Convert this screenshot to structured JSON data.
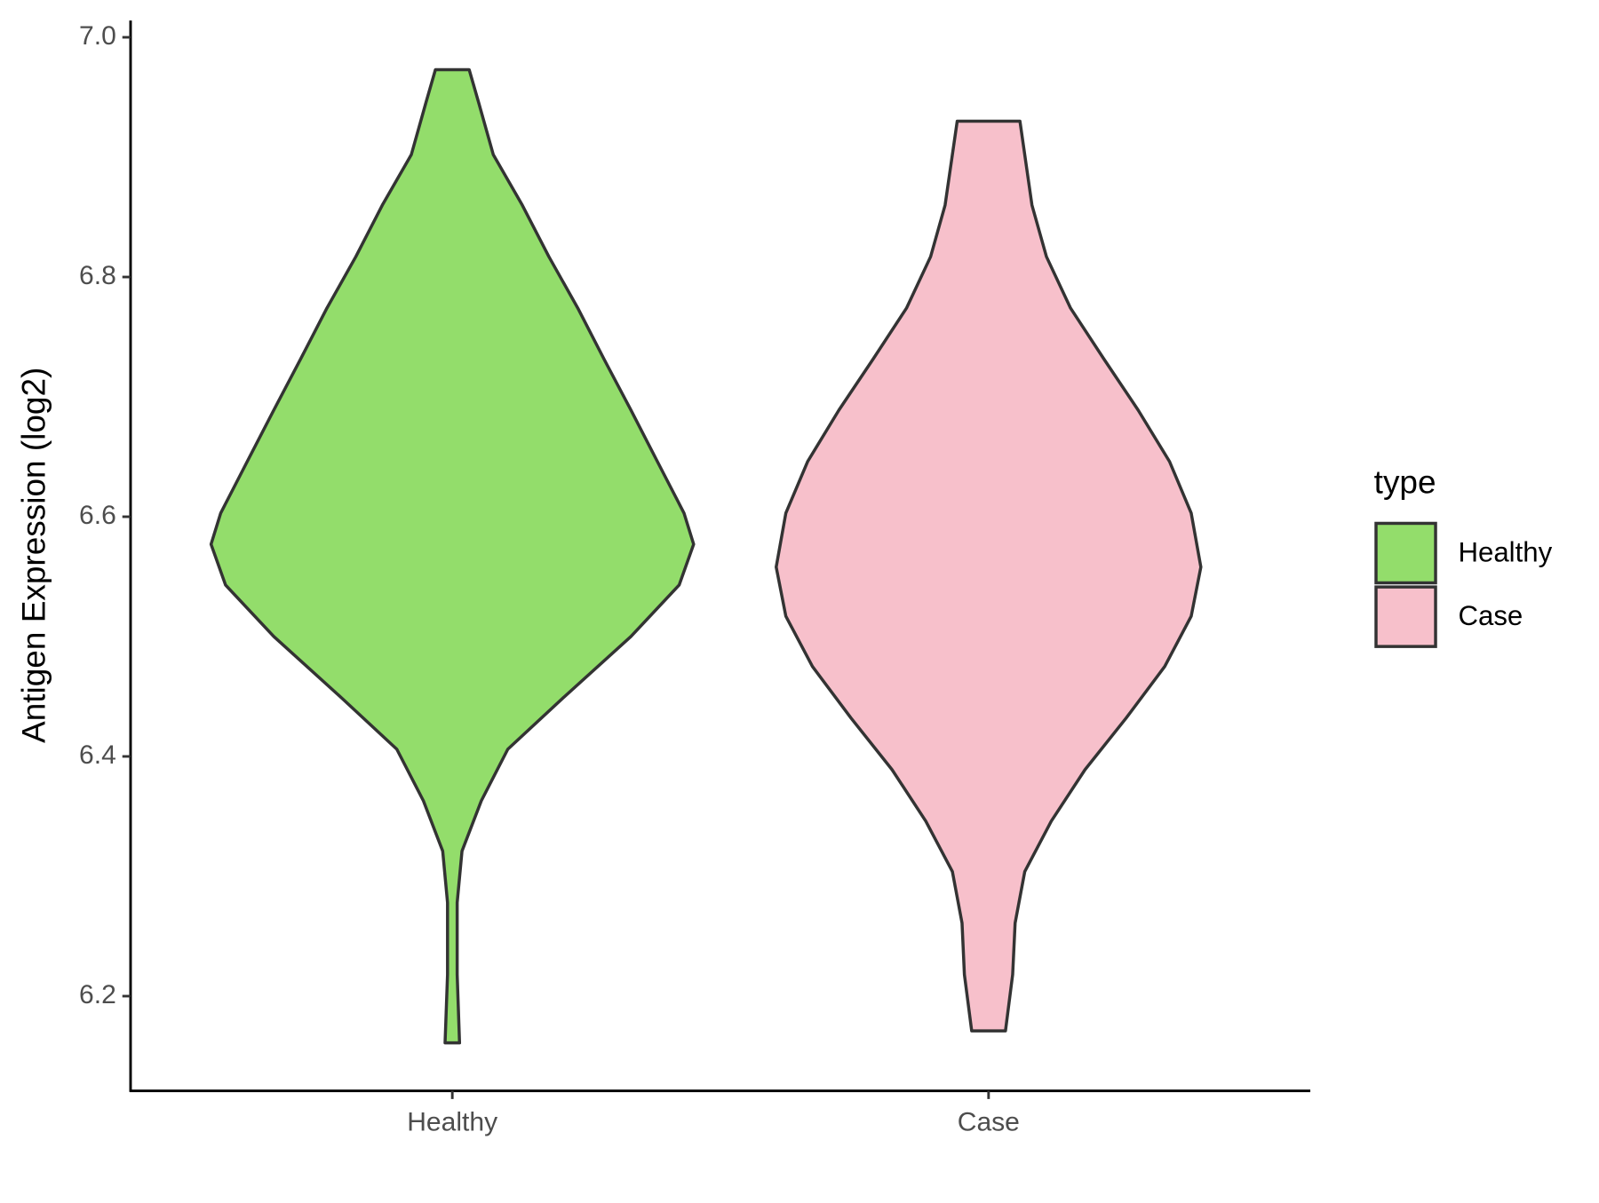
{
  "chart_data": {
    "type": "violin",
    "y_label": "Antigen Expression (log2)",
    "categories": [
      "Healthy",
      "Case"
    ],
    "legend_title": "type",
    "legend": "right",
    "ylim": [
      6.121,
      7.014
    ],
    "yticks": [
      6.2,
      6.4,
      6.6,
      6.8,
      {
        "value": 7,
        "label": "7.0"
      }
    ],
    "series": [
      {
        "name": "Healthy",
        "color": "#93dd6b",
        "y": [
          6.973,
          6.945,
          6.902,
          6.86,
          6.817,
          6.774,
          6.731,
          6.689,
          6.646,
          6.603,
          6.577,
          6.543,
          6.5,
          6.449,
          6.406,
          6.363,
          6.321,
          6.278,
          6.218,
          6.161
        ],
        "width": [
          0.07,
          0.11,
          0.17,
          0.29,
          0.4,
          0.52,
          0.63,
          0.74,
          0.85,
          0.96,
          1.0,
          0.94,
          0.74,
          0.46,
          0.23,
          0.12,
          0.04,
          0.02,
          0.02,
          0.03
        ]
      },
      {
        "name": "Case",
        "color": "#f7c0cb",
        "y": [
          6.93,
          6.86,
          6.817,
          6.774,
          6.731,
          6.689,
          6.646,
          6.603,
          6.558,
          6.517,
          6.475,
          6.432,
          6.389,
          6.346,
          6.304,
          6.261,
          6.218,
          6.171
        ],
        "width": [
          0.13,
          0.18,
          0.24,
          0.34,
          0.48,
          0.62,
          0.75,
          0.84,
          0.88,
          0.84,
          0.73,
          0.57,
          0.4,
          0.26,
          0.15,
          0.11,
          0.1,
          0.07
        ]
      }
    ]
  }
}
